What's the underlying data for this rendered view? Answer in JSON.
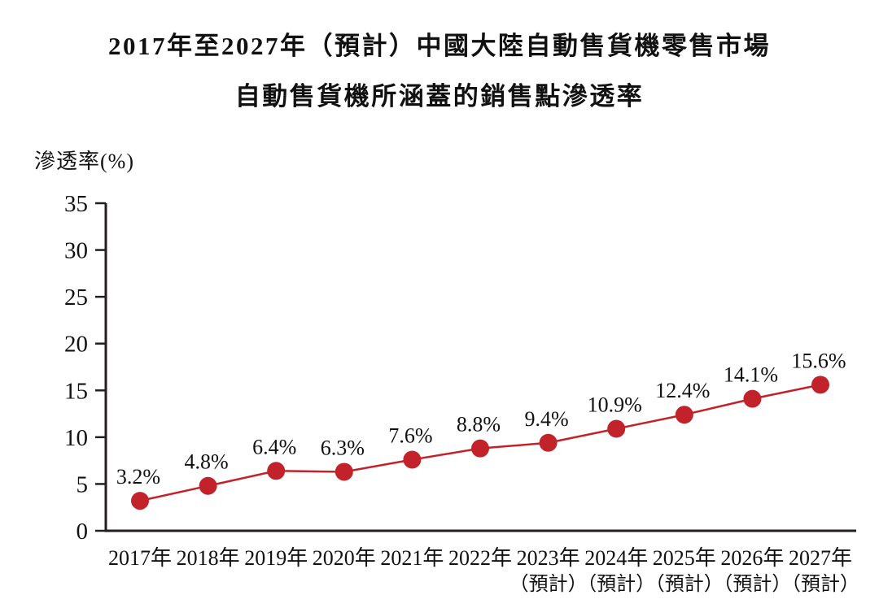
{
  "title": {
    "line1": "2017年至2027年（預計）中國大陸自動售貨機零售市場",
    "line2": "自動售貨機所涵蓋的銷售點滲透率"
  },
  "chart_data": {
    "type": "line",
    "title": "2017年至2027年（預計）中國大陸自動售貨機零售市場自動售貨機所涵蓋的銷售點滲透率",
    "ylabel": "滲透率(%)",
    "xlabel": "",
    "ylim": [
      0,
      35
    ],
    "yticks": [
      0,
      5,
      10,
      15,
      20,
      25,
      30,
      35
    ],
    "grid": false,
    "legend": "none",
    "line_color": "#c2232b",
    "marker_color": "#c2232b",
    "axis_color": "#231f20",
    "categories": [
      "2017年",
      "2018年",
      "2019年",
      "2020年",
      "2021年",
      "2022年",
      "2023年",
      "2024年",
      "2025年",
      "2026年",
      "2027年"
    ],
    "category_sublabels": [
      "",
      "",
      "",
      "",
      "",
      "",
      "（預計）",
      "（預計）",
      "（預計）",
      "（預計）",
      "（預計）"
    ],
    "values": [
      3.2,
      4.8,
      6.4,
      6.3,
      7.6,
      8.8,
      9.4,
      10.9,
      12.4,
      14.1,
      15.6
    ],
    "point_labels": [
      "3.2%",
      "4.8%",
      "6.4%",
      "6.3%",
      "7.6%",
      "8.8%",
      "9.4%",
      "10.9%",
      "12.4%",
      "14.1%",
      "15.6%"
    ]
  }
}
